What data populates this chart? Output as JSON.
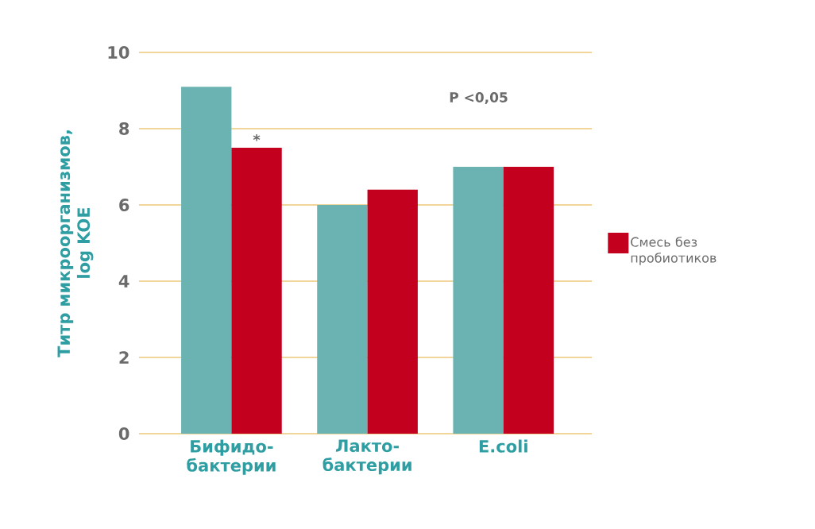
{
  "chart_data": {
    "type": "bar",
    "ylabel": "Титр микроорганизмов, log KOE",
    "categories": [
      "Бифидо- бактерии",
      "Лакто- бактерии",
      "E.coli"
    ],
    "series": [
      {
        "color": "#6bb3b2",
        "values": [
          9.1,
          6.0,
          7.0
        ]
      },
      {
        "name": "Смесь без пробиотиков",
        "color": "#c4001f",
        "values": [
          7.5,
          6.4,
          7.0
        ]
      }
    ],
    "ylim": [
      0,
      10
    ],
    "yticks": [
      0,
      2,
      4,
      6,
      8,
      10
    ],
    "grid": "y",
    "legend": "right",
    "annotations": [
      "P <0,05",
      {
        "text": "*",
        "x": "Бифидо- бактерии",
        "y": 7.5
      }
    ]
  }
}
